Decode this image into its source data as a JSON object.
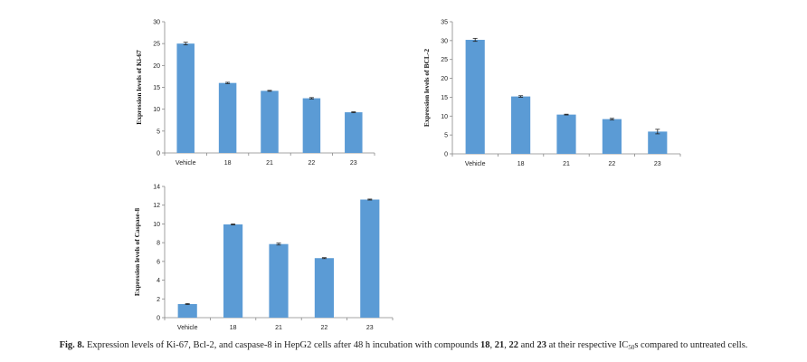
{
  "chart_data": [
    {
      "type": "bar",
      "ylabel": "Expression levels of Ki-67",
      "categories": [
        "Vehicle",
        "18",
        "21",
        "22",
        "23"
      ],
      "values": [
        25.0,
        16.0,
        14.2,
        12.5,
        9.3
      ],
      "errors": [
        0.3,
        0.15,
        0.1,
        0.15,
        0.1
      ],
      "ylim": [
        0,
        30
      ],
      "yticks": [
        "0",
        "5",
        "10",
        "15",
        "20",
        "25",
        "30"
      ],
      "bar_color": "#5b9bd5",
      "grid": false
    },
    {
      "type": "bar",
      "ylabel": "Expression levels of BCL-2",
      "categories": [
        "Vehicle",
        "18",
        "21",
        "22",
        "23"
      ],
      "values": [
        30.2,
        15.2,
        10.4,
        9.2,
        5.9
      ],
      "errors": [
        0.4,
        0.2,
        0.1,
        0.2,
        0.6
      ],
      "ylim": [
        0,
        35
      ],
      "yticks": [
        "0",
        "5",
        "10",
        "15",
        "20",
        "25",
        "30",
        "35"
      ],
      "bar_color": "#5b9bd5",
      "grid": false
    },
    {
      "type": "bar",
      "ylabel": "Expression levels of Caspase-8",
      "categories": [
        "Vehicle",
        "18",
        "21",
        "22",
        "23"
      ],
      "values": [
        1.45,
        9.95,
        7.85,
        6.35,
        12.6
      ],
      "errors": [
        0.05,
        0.05,
        0.1,
        0.05,
        0.05
      ],
      "ylim": [
        0,
        14
      ],
      "yticks": [
        "0",
        "2",
        "4",
        "6",
        "8",
        "10",
        "12",
        "14"
      ],
      "bar_color": "#5b9bd5",
      "grid": false
    }
  ],
  "caption": {
    "label": "Fig. 8.",
    "text_1": " Expression levels of Ki-67, Bcl-2, and caspase-8 in HepG2 cells after 48 h incubation with compounds ",
    "c1": "18",
    "sep1": ", ",
    "c2": "21",
    "sep2": ", ",
    "c3": "22",
    "sep3": " and ",
    "c4": "23",
    "text_2": " at their respective IC",
    "sub": "50",
    "text_3": "s compared to untreated cells."
  }
}
